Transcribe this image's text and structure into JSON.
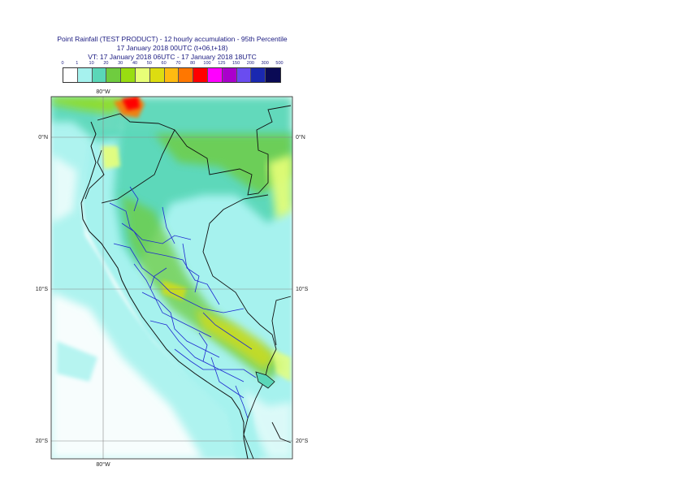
{
  "header": {
    "title_line1": "Point Rainfall (TEST PRODUCT) - 12 hourly accumulation - 95th Percentile",
    "title_line2": "17 January 2018 00UTC (t+06,t+18)",
    "title_line3": "VT: 17 January 2018 06UTC - 17 January 2018 18UTC"
  },
  "legend": {
    "ticks": [
      "0",
      "1",
      "10",
      "20",
      "30",
      "40",
      "50",
      "60",
      "70",
      "80",
      "100",
      "125",
      "150",
      "200",
      "300",
      "500"
    ],
    "colors": [
      "#ffffff",
      "#a6f2ee",
      "#5ad7b8",
      "#6fcc3f",
      "#99dd11",
      "#e8ff77",
      "#dddd11",
      "#ffbb11",
      "#ff7700",
      "#ff0000",
      "#ff00ff",
      "#aa00cc",
      "#6a4cf0",
      "#1a28b0",
      "#0a0a55"
    ]
  },
  "map": {
    "lon_labels": [
      "80°W",
      "80°W"
    ],
    "lat_labels": [
      "0°N",
      "0°N",
      "10°S",
      "10°S",
      "20°S",
      "20°S"
    ]
  }
}
